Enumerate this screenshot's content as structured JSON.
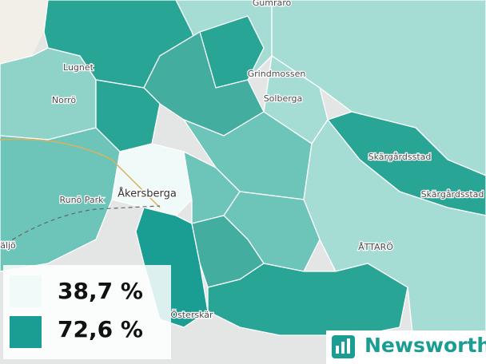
{
  "map": {
    "places": [
      "Gumrarö",
      "Lugnet",
      "Norrö",
      "Grindmossen",
      "Solberga",
      "Skärgårdsstad",
      "Skärgårdsstad",
      "Runö Park",
      "Åkersberga",
      "äljö",
      "ÅTTARÖ",
      "Österskär"
    ]
  },
  "legend": {
    "items": [
      "38,7 %",
      "72,6 %"
    ]
  },
  "logo": "Newsworthy"
}
